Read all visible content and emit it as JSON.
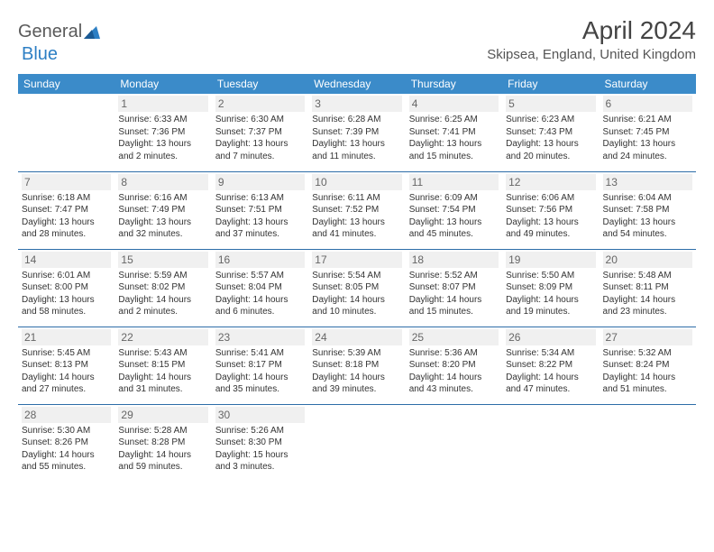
{
  "logo": {
    "text1": "General",
    "text2": "Blue"
  },
  "title": "April 2024",
  "location": "Skipsea, England, United Kingdom",
  "colors": {
    "header_bg": "#3b8bc9",
    "header_text": "#ffffff",
    "row_border": "#2d6da8",
    "daynum_bg": "#f0f0f0",
    "body_text": "#333333",
    "logo_gray": "#5a5a5a",
    "logo_blue": "#2d7fc4"
  },
  "typography": {
    "title_fontsize": 28,
    "location_fontsize": 15,
    "header_fontsize": 12,
    "daynum_fontsize": 12,
    "cell_fontsize": 10
  },
  "day_headers": [
    "Sunday",
    "Monday",
    "Tuesday",
    "Wednesday",
    "Thursday",
    "Friday",
    "Saturday"
  ],
  "weeks": [
    [
      {
        "n": "",
        "l1": "",
        "l2": "",
        "l3": "",
        "l4": ""
      },
      {
        "n": "1",
        "l1": "Sunrise: 6:33 AM",
        "l2": "Sunset: 7:36 PM",
        "l3": "Daylight: 13 hours",
        "l4": "and 2 minutes."
      },
      {
        "n": "2",
        "l1": "Sunrise: 6:30 AM",
        "l2": "Sunset: 7:37 PM",
        "l3": "Daylight: 13 hours",
        "l4": "and 7 minutes."
      },
      {
        "n": "3",
        "l1": "Sunrise: 6:28 AM",
        "l2": "Sunset: 7:39 PM",
        "l3": "Daylight: 13 hours",
        "l4": "and 11 minutes."
      },
      {
        "n": "4",
        "l1": "Sunrise: 6:25 AM",
        "l2": "Sunset: 7:41 PM",
        "l3": "Daylight: 13 hours",
        "l4": "and 15 minutes."
      },
      {
        "n": "5",
        "l1": "Sunrise: 6:23 AM",
        "l2": "Sunset: 7:43 PM",
        "l3": "Daylight: 13 hours",
        "l4": "and 20 minutes."
      },
      {
        "n": "6",
        "l1": "Sunrise: 6:21 AM",
        "l2": "Sunset: 7:45 PM",
        "l3": "Daylight: 13 hours",
        "l4": "and 24 minutes."
      }
    ],
    [
      {
        "n": "7",
        "l1": "Sunrise: 6:18 AM",
        "l2": "Sunset: 7:47 PM",
        "l3": "Daylight: 13 hours",
        "l4": "and 28 minutes."
      },
      {
        "n": "8",
        "l1": "Sunrise: 6:16 AM",
        "l2": "Sunset: 7:49 PM",
        "l3": "Daylight: 13 hours",
        "l4": "and 32 minutes."
      },
      {
        "n": "9",
        "l1": "Sunrise: 6:13 AM",
        "l2": "Sunset: 7:51 PM",
        "l3": "Daylight: 13 hours",
        "l4": "and 37 minutes."
      },
      {
        "n": "10",
        "l1": "Sunrise: 6:11 AM",
        "l2": "Sunset: 7:52 PM",
        "l3": "Daylight: 13 hours",
        "l4": "and 41 minutes."
      },
      {
        "n": "11",
        "l1": "Sunrise: 6:09 AM",
        "l2": "Sunset: 7:54 PM",
        "l3": "Daylight: 13 hours",
        "l4": "and 45 minutes."
      },
      {
        "n": "12",
        "l1": "Sunrise: 6:06 AM",
        "l2": "Sunset: 7:56 PM",
        "l3": "Daylight: 13 hours",
        "l4": "and 49 minutes."
      },
      {
        "n": "13",
        "l1": "Sunrise: 6:04 AM",
        "l2": "Sunset: 7:58 PM",
        "l3": "Daylight: 13 hours",
        "l4": "and 54 minutes."
      }
    ],
    [
      {
        "n": "14",
        "l1": "Sunrise: 6:01 AM",
        "l2": "Sunset: 8:00 PM",
        "l3": "Daylight: 13 hours",
        "l4": "and 58 minutes."
      },
      {
        "n": "15",
        "l1": "Sunrise: 5:59 AM",
        "l2": "Sunset: 8:02 PM",
        "l3": "Daylight: 14 hours",
        "l4": "and 2 minutes."
      },
      {
        "n": "16",
        "l1": "Sunrise: 5:57 AM",
        "l2": "Sunset: 8:04 PM",
        "l3": "Daylight: 14 hours",
        "l4": "and 6 minutes."
      },
      {
        "n": "17",
        "l1": "Sunrise: 5:54 AM",
        "l2": "Sunset: 8:05 PM",
        "l3": "Daylight: 14 hours",
        "l4": "and 10 minutes."
      },
      {
        "n": "18",
        "l1": "Sunrise: 5:52 AM",
        "l2": "Sunset: 8:07 PM",
        "l3": "Daylight: 14 hours",
        "l4": "and 15 minutes."
      },
      {
        "n": "19",
        "l1": "Sunrise: 5:50 AM",
        "l2": "Sunset: 8:09 PM",
        "l3": "Daylight: 14 hours",
        "l4": "and 19 minutes."
      },
      {
        "n": "20",
        "l1": "Sunrise: 5:48 AM",
        "l2": "Sunset: 8:11 PM",
        "l3": "Daylight: 14 hours",
        "l4": "and 23 minutes."
      }
    ],
    [
      {
        "n": "21",
        "l1": "Sunrise: 5:45 AM",
        "l2": "Sunset: 8:13 PM",
        "l3": "Daylight: 14 hours",
        "l4": "and 27 minutes."
      },
      {
        "n": "22",
        "l1": "Sunrise: 5:43 AM",
        "l2": "Sunset: 8:15 PM",
        "l3": "Daylight: 14 hours",
        "l4": "and 31 minutes."
      },
      {
        "n": "23",
        "l1": "Sunrise: 5:41 AM",
        "l2": "Sunset: 8:17 PM",
        "l3": "Daylight: 14 hours",
        "l4": "and 35 minutes."
      },
      {
        "n": "24",
        "l1": "Sunrise: 5:39 AM",
        "l2": "Sunset: 8:18 PM",
        "l3": "Daylight: 14 hours",
        "l4": "and 39 minutes."
      },
      {
        "n": "25",
        "l1": "Sunrise: 5:36 AM",
        "l2": "Sunset: 8:20 PM",
        "l3": "Daylight: 14 hours",
        "l4": "and 43 minutes."
      },
      {
        "n": "26",
        "l1": "Sunrise: 5:34 AM",
        "l2": "Sunset: 8:22 PM",
        "l3": "Daylight: 14 hours",
        "l4": "and 47 minutes."
      },
      {
        "n": "27",
        "l1": "Sunrise: 5:32 AM",
        "l2": "Sunset: 8:24 PM",
        "l3": "Daylight: 14 hours",
        "l4": "and 51 minutes."
      }
    ],
    [
      {
        "n": "28",
        "l1": "Sunrise: 5:30 AM",
        "l2": "Sunset: 8:26 PM",
        "l3": "Daylight: 14 hours",
        "l4": "and 55 minutes."
      },
      {
        "n": "29",
        "l1": "Sunrise: 5:28 AM",
        "l2": "Sunset: 8:28 PM",
        "l3": "Daylight: 14 hours",
        "l4": "and 59 minutes."
      },
      {
        "n": "30",
        "l1": "Sunrise: 5:26 AM",
        "l2": "Sunset: 8:30 PM",
        "l3": "Daylight: 15 hours",
        "l4": "and 3 minutes."
      },
      {
        "n": "",
        "l1": "",
        "l2": "",
        "l3": "",
        "l4": ""
      },
      {
        "n": "",
        "l1": "",
        "l2": "",
        "l3": "",
        "l4": ""
      },
      {
        "n": "",
        "l1": "",
        "l2": "",
        "l3": "",
        "l4": ""
      },
      {
        "n": "",
        "l1": "",
        "l2": "",
        "l3": "",
        "l4": ""
      }
    ]
  ]
}
